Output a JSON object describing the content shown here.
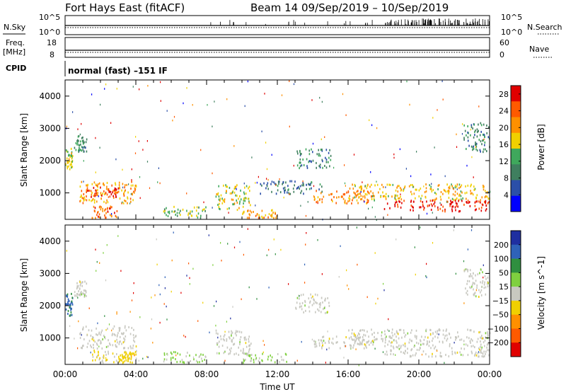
{
  "header": {
    "station": "Fort Hays East (fitACF)",
    "beam_date": "Beam 14  09/Sep/2019 – 10/Sep/2019"
  },
  "top_panels": {
    "nsky_label": "N.Sky",
    "nsearch_label": "N.Search",
    "freq_label_1": "Freq.",
    "freq_label_2": "[MHz]",
    "nave_label": "Nave",
    "cpid_label": "CPID",
    "cpid_text": "normal (fast) –151 IF",
    "noise_left_ticks": [
      "10^5",
      "10^0"
    ],
    "noise_right_ticks": [
      "10^5",
      "10^0"
    ],
    "freq_ticks": [
      "18",
      "8"
    ],
    "nave_ticks": [
      "60",
      "0"
    ]
  },
  "colors": {
    "power_scale": [
      "#0000ff",
      "#2b4fa8",
      "#3f7f5f",
      "#3fa85c",
      "#f0d000",
      "#ff9000",
      "#ff5a00",
      "#e00000"
    ],
    "velocity_scale": [
      "#1f2fa0",
      "#2f62b8",
      "#2f8f3f",
      "#7fd03f",
      "#c8c8c0",
      "#f0d000",
      "#ff9000",
      "#ff5a00",
      "#e00000"
    ],
    "ground_scatter": "#c8c8c0"
  },
  "chart_data": [
    {
      "type": "heatmap",
      "title": "",
      "xlabel": "",
      "ylabel": "Slant Range [km]",
      "x_ticks": [
        "00:00",
        "04:00",
        "08:00",
        "12:00",
        "16:00",
        "20:00",
        "00:00"
      ],
      "y_ticks": [
        1000,
        2000,
        3000,
        4000
      ],
      "ylim": [
        180,
        4500
      ],
      "colorbar": {
        "label": "Power [dB]",
        "ticks": [
          4,
          8,
          12,
          16,
          20,
          24,
          28
        ],
        "range": [
          0,
          30
        ]
      },
      "regions": [
        {
          "t": [
            0.0,
            0.4
          ],
          "r": [
            1700,
            2400
          ],
          "v": 16
        },
        {
          "t": [
            0.5,
            1.2
          ],
          "r": [
            2300,
            2800
          ],
          "v": 10
        },
        {
          "t": [
            0.8,
            4.0
          ],
          "r": [
            700,
            1400
          ],
          "v": 20
        },
        {
          "t": [
            1.0,
            3.0
          ],
          "r": [
            900,
            1200
          ],
          "v": 26
        },
        {
          "t": [
            1.5,
            3.0
          ],
          "r": [
            250,
            650
          ],
          "v": 24
        },
        {
          "t": [
            5.5,
            8.0
          ],
          "r": [
            250,
            600
          ],
          "v": 14
        },
        {
          "t": [
            8.5,
            10.5
          ],
          "r": [
            500,
            1300
          ],
          "v": 16
        },
        {
          "t": [
            10.0,
            12.0
          ],
          "r": [
            250,
            500
          ],
          "v": 20
        },
        {
          "t": [
            11.0,
            14.5
          ],
          "r": [
            1000,
            1400
          ],
          "v": 8
        },
        {
          "t": [
            13.0,
            15.0
          ],
          "r": [
            1800,
            2400
          ],
          "v": 10
        },
        {
          "t": [
            14.0,
            17.5
          ],
          "r": [
            700,
            1100
          ],
          "v": 22
        },
        {
          "t": [
            16.0,
            24.0
          ],
          "r": [
            800,
            1300
          ],
          "v": 18
        },
        {
          "t": [
            18.0,
            24.0
          ],
          "r": [
            450,
            800
          ],
          "v": 28
        },
        {
          "t": [
            22.5,
            24.0
          ],
          "r": [
            2300,
            3200
          ],
          "v": 10
        }
      ]
    },
    {
      "type": "heatmap",
      "title": "",
      "xlabel": "Time UT",
      "ylabel": "Slant Range [km]",
      "x_ticks": [
        "00:00",
        "04:00",
        "08:00",
        "12:00",
        "16:00",
        "20:00",
        "00:00"
      ],
      "y_ticks": [
        1000,
        2000,
        3000,
        4000
      ],
      "ylim": [
        180,
        4500
      ],
      "colorbar": {
        "label": "Velocity [m s^-1]",
        "ticks": [
          "200",
          "100",
          "50",
          "15",
          "−15",
          "−50",
          "−100",
          "−200"
        ],
        "range": [
          -250,
          250
        ]
      },
      "regions": [
        {
          "t": [
            0.0,
            0.4
          ],
          "r": [
            1700,
            2400
          ],
          "v": 150
        },
        {
          "t": [
            0.5,
            1.2
          ],
          "r": [
            2300,
            2800
          ],
          "v": 0
        },
        {
          "t": [
            0.8,
            4.0
          ],
          "r": [
            700,
            1400
          ],
          "v": 0
        },
        {
          "t": [
            1.5,
            4.0
          ],
          "r": [
            250,
            650
          ],
          "v": -30
        },
        {
          "t": [
            3.0,
            4.0
          ],
          "r": [
            300,
            600
          ],
          "v": -60
        },
        {
          "t": [
            5.5,
            8.0
          ],
          "r": [
            250,
            600
          ],
          "v": 40
        },
        {
          "t": [
            8.5,
            10.5
          ],
          "r": [
            500,
            1300
          ],
          "v": 0
        },
        {
          "t": [
            10.0,
            12.5
          ],
          "r": [
            250,
            550
          ],
          "v": 30
        },
        {
          "t": [
            13.0,
            15.0
          ],
          "r": [
            1800,
            2400
          ],
          "v": 0
        },
        {
          "t": [
            14.0,
            17.5
          ],
          "r": [
            700,
            1100
          ],
          "v": 0
        },
        {
          "t": [
            16.0,
            24.0
          ],
          "r": [
            800,
            1300
          ],
          "v": 0
        },
        {
          "t": [
            18.0,
            24.0
          ],
          "r": [
            450,
            800
          ],
          "v": 0
        },
        {
          "t": [
            22.5,
            24.0
          ],
          "r": [
            2300,
            3200
          ],
          "v": 0
        }
      ]
    }
  ]
}
